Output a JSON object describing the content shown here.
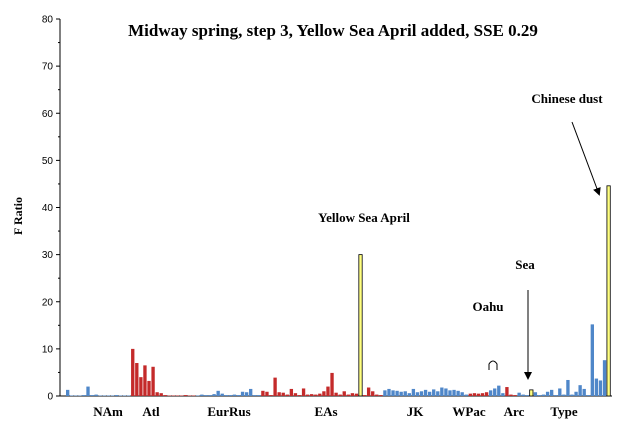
{
  "chart_data": {
    "type": "bar",
    "title": "Midway spring, step 3, Yellow Sea April added, SSE 0.29",
    "ylabel": "F Ratio",
    "ylim": [
      0,
      80
    ],
    "yticks": [
      0,
      10,
      20,
      30,
      40,
      50,
      60,
      70,
      80
    ],
    "grid": false,
    "colors": {
      "blue": "#4f87c9",
      "red": "#c42a2a",
      "yellow": "#ffff80"
    },
    "groups": [
      "NAm",
      "Atl",
      "EurRus",
      "EAs",
      "JK",
      "WPac",
      "Arc",
      "Type"
    ],
    "bars": [
      {
        "v": 1.3,
        "c": "blue"
      },
      {
        "v": 0.1,
        "c": "blue"
      },
      {
        "v": 0.1,
        "c": "blue"
      },
      {
        "v": 0.1,
        "c": "blue"
      },
      {
        "v": 0.2,
        "c": "blue"
      },
      {
        "v": 2.0,
        "c": "blue"
      },
      {
        "v": 0.2,
        "c": "blue"
      },
      {
        "v": 0.3,
        "c": "blue"
      },
      {
        "v": 0.1,
        "c": "blue"
      },
      {
        "v": 0.1,
        "c": "blue"
      },
      {
        "v": 0.1,
        "c": "blue"
      },
      {
        "v": 0.1,
        "c": "blue"
      },
      {
        "v": 0.2,
        "c": "blue"
      },
      {
        "v": 0.1,
        "c": "blue"
      },
      {
        "v": 0.1,
        "c": "blue"
      },
      {
        "v": 0.1,
        "c": "blue"
      },
      {
        "v": 10.0,
        "c": "red"
      },
      {
        "v": 7.0,
        "c": "red"
      },
      {
        "v": 4.0,
        "c": "red"
      },
      {
        "v": 6.5,
        "c": "red"
      },
      {
        "v": 3.2,
        "c": "red"
      },
      {
        "v": 6.2,
        "c": "red"
      },
      {
        "v": 0.8,
        "c": "red"
      },
      {
        "v": 0.6,
        "c": "red"
      },
      {
        "v": 0.2,
        "c": "red"
      },
      {
        "v": 0.1,
        "c": "red"
      },
      {
        "v": 0.1,
        "c": "red"
      },
      {
        "v": 0.1,
        "c": "red"
      },
      {
        "v": 0.1,
        "c": "red"
      },
      {
        "v": 0.2,
        "c": "red"
      },
      {
        "v": 0.1,
        "c": "red"
      },
      {
        "v": 0.1,
        "c": "red"
      },
      {
        "v": 0.1,
        "c": "blue"
      },
      {
        "v": 0.3,
        "c": "blue"
      },
      {
        "v": 0.2,
        "c": "blue"
      },
      {
        "v": 0.2,
        "c": "blue"
      },
      {
        "v": 0.4,
        "c": "blue"
      },
      {
        "v": 1.1,
        "c": "blue"
      },
      {
        "v": 0.5,
        "c": "blue"
      },
      {
        "v": 0.2,
        "c": "blue"
      },
      {
        "v": 0.2,
        "c": "blue"
      },
      {
        "v": 0.3,
        "c": "blue"
      },
      {
        "v": 0.2,
        "c": "blue"
      },
      {
        "v": 0.9,
        "c": "blue"
      },
      {
        "v": 0.8,
        "c": "blue"
      },
      {
        "v": 1.5,
        "c": "blue"
      },
      {
        "v": 0.2,
        "c": "blue"
      },
      {
        "v": 0.2,
        "c": "blue"
      },
      {
        "v": 1.1,
        "c": "red"
      },
      {
        "v": 0.9,
        "c": "red"
      },
      {
        "v": 0.2,
        "c": "red"
      },
      {
        "v": 3.9,
        "c": "red"
      },
      {
        "v": 0.8,
        "c": "red"
      },
      {
        "v": 0.7,
        "c": "red"
      },
      {
        "v": 0.3,
        "c": "red"
      },
      {
        "v": 1.5,
        "c": "red"
      },
      {
        "v": 0.6,
        "c": "red"
      },
      {
        "v": 0.2,
        "c": "red"
      },
      {
        "v": 1.6,
        "c": "red"
      },
      {
        "v": 0.3,
        "c": "red"
      },
      {
        "v": 0.4,
        "c": "red"
      },
      {
        "v": 0.3,
        "c": "red"
      },
      {
        "v": 0.5,
        "c": "red"
      },
      {
        "v": 1.0,
        "c": "red"
      },
      {
        "v": 2.0,
        "c": "red"
      },
      {
        "v": 4.9,
        "c": "red"
      },
      {
        "v": 0.7,
        "c": "red"
      },
      {
        "v": 0.3,
        "c": "red"
      },
      {
        "v": 1.0,
        "c": "red"
      },
      {
        "v": 0.3,
        "c": "red"
      },
      {
        "v": 0.6,
        "c": "red"
      },
      {
        "v": 0.5,
        "c": "red"
      },
      {
        "v": 30.0,
        "c": "yellow"
      },
      {
        "v": 0.2,
        "c": "red"
      },
      {
        "v": 1.8,
        "c": "red"
      },
      {
        "v": 1.0,
        "c": "red"
      },
      {
        "v": 0.3,
        "c": "red"
      },
      {
        "v": 0.2,
        "c": "red"
      },
      {
        "v": 1.2,
        "c": "blue"
      },
      {
        "v": 1.5,
        "c": "blue"
      },
      {
        "v": 1.2,
        "c": "blue"
      },
      {
        "v": 1.1,
        "c": "blue"
      },
      {
        "v": 0.9,
        "c": "blue"
      },
      {
        "v": 1.0,
        "c": "blue"
      },
      {
        "v": 0.6,
        "c": "blue"
      },
      {
        "v": 1.5,
        "c": "blue"
      },
      {
        "v": 0.8,
        "c": "blue"
      },
      {
        "v": 1.0,
        "c": "blue"
      },
      {
        "v": 1.3,
        "c": "blue"
      },
      {
        "v": 0.9,
        "c": "blue"
      },
      {
        "v": 1.4,
        "c": "blue"
      },
      {
        "v": 1.0,
        "c": "blue"
      },
      {
        "v": 1.8,
        "c": "blue"
      },
      {
        "v": 1.6,
        "c": "blue"
      },
      {
        "v": 1.2,
        "c": "blue"
      },
      {
        "v": 1.3,
        "c": "blue"
      },
      {
        "v": 1.1,
        "c": "blue"
      },
      {
        "v": 0.8,
        "c": "blue"
      },
      {
        "v": 0.3,
        "c": "blue"
      },
      {
        "v": 0.5,
        "c": "red"
      },
      {
        "v": 0.6,
        "c": "red"
      },
      {
        "v": 0.5,
        "c": "red"
      },
      {
        "v": 0.6,
        "c": "red"
      },
      {
        "v": 0.8,
        "c": "red"
      },
      {
        "v": 1.2,
        "c": "blue"
      },
      {
        "v": 1.6,
        "c": "blue"
      },
      {
        "v": 2.2,
        "c": "blue"
      },
      {
        "v": 0.6,
        "c": "blue"
      },
      {
        "v": 1.9,
        "c": "red"
      },
      {
        "v": 0.3,
        "c": "red"
      },
      {
        "v": 0.2,
        "c": "red"
      },
      {
        "v": 0.7,
        "c": "blue"
      },
      {
        "v": 0.3,
        "c": "blue"
      },
      {
        "v": 0.2,
        "c": "blue"
      },
      {
        "v": 1.3,
        "c": "yellow"
      },
      {
        "v": 0.8,
        "c": "blue"
      },
      {
        "v": 0.2,
        "c": "blue"
      },
      {
        "v": 0.3,
        "c": "blue"
      },
      {
        "v": 0.9,
        "c": "blue"
      },
      {
        "v": 1.3,
        "c": "blue"
      },
      {
        "v": 0.2,
        "c": "blue"
      },
      {
        "v": 1.6,
        "c": "blue"
      },
      {
        "v": 0.3,
        "c": "blue"
      },
      {
        "v": 3.4,
        "c": "blue"
      },
      {
        "v": 0.3,
        "c": "blue"
      },
      {
        "v": 0.9,
        "c": "blue"
      },
      {
        "v": 2.3,
        "c": "blue"
      },
      {
        "v": 1.5,
        "c": "blue"
      },
      {
        "v": 0.2,
        "c": "blue"
      },
      {
        "v": 15.2,
        "c": "blue"
      },
      {
        "v": 3.7,
        "c": "blue"
      },
      {
        "v": 3.3,
        "c": "blue"
      },
      {
        "v": 7.6,
        "c": "blue"
      },
      {
        "v": 44.6,
        "c": "yellow"
      }
    ],
    "annotations": [
      {
        "text": "Yellow Sea April"
      },
      {
        "text": "Chinese dust"
      },
      {
        "text": "Sea"
      },
      {
        "text": "Oahu"
      }
    ]
  }
}
